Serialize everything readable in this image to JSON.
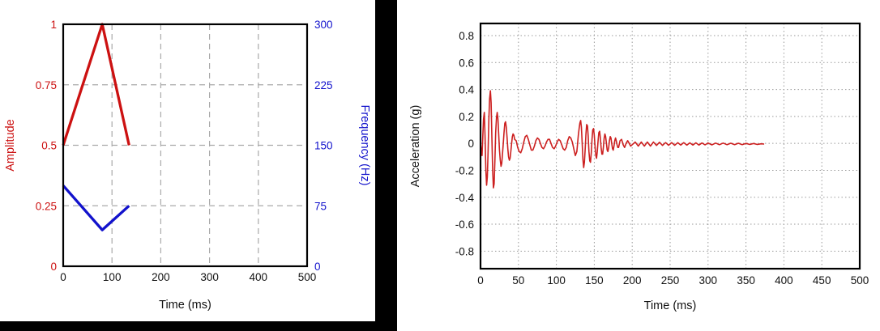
{
  "figure": {
    "background_color": "#000000",
    "panel_color": "#ffffff",
    "text_color": "#111111"
  },
  "chart_data": [
    {
      "id": "amplitude-frequency",
      "type": "line",
      "title": "",
      "xlabel": "Time (ms)",
      "xlim": [
        0,
        500
      ],
      "x_tick_values": [
        0,
        100,
        200,
        300,
        400,
        500
      ],
      "x_tick_labels": [
        "0",
        "100",
        "200",
        "300",
        "400",
        "500"
      ],
      "grid": {
        "style": "dashed",
        "color": "#a9a9a9",
        "on": true
      },
      "legend": "none",
      "left_axis": {
        "label": "Amplitude",
        "color": "#cc1111",
        "lim": [
          0,
          1
        ],
        "tick_values": [
          0,
          0.25,
          0.5,
          0.75,
          1
        ],
        "tick_labels": [
          "0",
          "0.25",
          "0.5",
          "0.75",
          "1"
        ]
      },
      "right_axis": {
        "label": "Frequency (Hz)",
        "color": "#1212cc",
        "lim": [
          0,
          300
        ],
        "tick_values": [
          0,
          75,
          150,
          225,
          300
        ],
        "tick_labels": [
          "0",
          "75",
          "150",
          "225",
          "300"
        ]
      },
      "series": [
        {
          "name": "amplitude",
          "axis": "left",
          "color": "#cc1111",
          "points": [
            [
              0,
              0.5
            ],
            [
              80,
              1.0
            ],
            [
              135,
              0.5
            ]
          ]
        },
        {
          "name": "frequency",
          "axis": "right",
          "color": "#1212cc",
          "points": [
            [
              0,
              100
            ],
            [
              80,
              45
            ],
            [
              135,
              75
            ]
          ]
        }
      ]
    },
    {
      "id": "acceleration",
      "type": "line",
      "title": "",
      "xlabel": "Time (ms)",
      "ylabel": "Acceleration (g)",
      "xlim": [
        0,
        500
      ],
      "ylim": [
        -0.93,
        0.89
      ],
      "x_tick_values": [
        0,
        50,
        100,
        150,
        200,
        250,
        300,
        350,
        400,
        450,
        500
      ],
      "x_tick_labels": [
        "0",
        "50",
        "100",
        "150",
        "200",
        "250",
        "300",
        "350",
        "400",
        "450",
        "500"
      ],
      "y_tick_values": [
        0.8,
        0.6,
        0.4,
        0.2,
        0,
        -0.2,
        -0.4,
        -0.6,
        -0.8
      ],
      "y_tick_labels": [
        "0.8",
        "0.6",
        "0.4",
        "0.2",
        "0",
        "-0.2",
        "-0.4",
        "-0.6",
        "-0.8"
      ],
      "grid": {
        "style": "dotted",
        "color": "#9a9a9a",
        "on": true
      },
      "legend": "none",
      "series": [
        {
          "name": "acceleration",
          "color": "#cc2020",
          "points": [
            [
              0,
              0
            ],
            [
              1,
              -0.05
            ],
            [
              2,
              -0.09
            ],
            [
              3,
              0.05
            ],
            [
              4,
              0.18
            ],
            [
              5,
              0.23
            ],
            [
              6,
              0.05
            ],
            [
              7,
              -0.2
            ],
            [
              8,
              -0.31
            ],
            [
              9,
              -0.25
            ],
            [
              10,
              -0.05
            ],
            [
              11,
              0.18
            ],
            [
              12,
              0.33
            ],
            [
              13,
              0.39
            ],
            [
              14,
              0.3
            ],
            [
              15,
              0.05
            ],
            [
              16,
              -0.2
            ],
            [
              17,
              -0.33
            ],
            [
              18,
              -0.3
            ],
            [
              19,
              -0.12
            ],
            [
              20,
              0.08
            ],
            [
              21,
              0.19
            ],
            [
              22,
              0.23
            ],
            [
              23,
              0.18
            ],
            [
              24,
              0.06
            ],
            [
              25,
              -0.05
            ],
            [
              26,
              -0.12
            ],
            [
              27,
              -0.17
            ],
            [
              28,
              -0.15
            ],
            [
              29,
              -0.08
            ],
            [
              30,
              0.0
            ],
            [
              31,
              0.08
            ],
            [
              32,
              0.15
            ],
            [
              33,
              0.16
            ],
            [
              34,
              0.12
            ],
            [
              35,
              0.04
            ],
            [
              36,
              -0.04
            ],
            [
              37,
              -0.1
            ],
            [
              38,
              -0.125
            ],
            [
              39,
              -0.11
            ],
            [
              40,
              -0.06
            ],
            [
              41,
              0.0
            ],
            [
              42,
              0.05
            ],
            [
              43,
              0.07
            ],
            [
              44,
              0.06
            ],
            [
              45,
              0.03
            ],
            [
              47,
              0.02
            ],
            [
              49,
              -0.03
            ],
            [
              51,
              -0.06
            ],
            [
              53,
              -0.07
            ],
            [
              55,
              -0.04
            ],
            [
              57,
              0.01
            ],
            [
              59,
              0.05
            ],
            [
              61,
              0.06
            ],
            [
              63,
              0.03
            ],
            [
              65,
              -0.01
            ],
            [
              67,
              -0.05
            ],
            [
              69,
              -0.05
            ],
            [
              71,
              -0.02
            ],
            [
              73,
              0.02
            ],
            [
              75,
              0.04
            ],
            [
              77,
              0.03
            ],
            [
              79,
              0.0
            ],
            [
              81,
              -0.03
            ],
            [
              83,
              -0.04
            ],
            [
              85,
              -0.02
            ],
            [
              87,
              0.01
            ],
            [
              89,
              0.03
            ],
            [
              91,
              0.03
            ],
            [
              93,
              0.0
            ],
            [
              95,
              -0.03
            ],
            [
              97,
              -0.04
            ],
            [
              99,
              -0.02
            ],
            [
              101,
              0.01
            ],
            [
              103,
              0.03
            ],
            [
              105,
              0.02
            ],
            [
              107,
              -0.01
            ],
            [
              109,
              -0.04
            ],
            [
              111,
              -0.05
            ],
            [
              113,
              -0.03
            ],
            [
              115,
              0.02
            ],
            [
              117,
              0.05
            ],
            [
              119,
              0.04
            ],
            [
              121,
              0.01
            ],
            [
              123,
              -0.04
            ],
            [
              125,
              -0.09
            ],
            [
              127,
              -0.06
            ],
            [
              128,
              0.0
            ],
            [
              129,
              0.06
            ],
            [
              130,
              0.11
            ],
            [
              131,
              0.15
            ],
            [
              132,
              0.17
            ],
            [
              133,
              0.12
            ],
            [
              134,
              0.01
            ],
            [
              135,
              -0.12
            ],
            [
              136,
              -0.18
            ],
            [
              137,
              -0.14
            ],
            [
              138,
              -0.04
            ],
            [
              139,
              0.07
            ],
            [
              140,
              0.14
            ],
            [
              141,
              0.13
            ],
            [
              142,
              0.05
            ],
            [
              143,
              -0.06
            ],
            [
              144,
              -0.13
            ],
            [
              145,
              -0.14
            ],
            [
              146,
              -0.07
            ],
            [
              147,
              0.03
            ],
            [
              148,
              0.1
            ],
            [
              149,
              0.11
            ],
            [
              150,
              0.06
            ],
            [
              151,
              -0.02
            ],
            [
              152,
              -0.09
            ],
            [
              153,
              -0.11
            ],
            [
              154,
              -0.06
            ],
            [
              155,
              0.02
            ],
            [
              156,
              0.08
            ],
            [
              157,
              0.09
            ],
            [
              158,
              0.04
            ],
            [
              159,
              -0.03
            ],
            [
              160,
              -0.08
            ],
            [
              161,
              -0.08
            ],
            [
              162,
              -0.03
            ],
            [
              163,
              0.04
            ],
            [
              164,
              0.07
            ],
            [
              165,
              0.05
            ],
            [
              166,
              0.0
            ],
            [
              167,
              -0.05
            ],
            [
              168,
              -0.06
            ],
            [
              169,
              -0.03
            ],
            [
              170,
              0.02
            ],
            [
              171,
              0.05
            ],
            [
              172,
              0.04
            ],
            [
              173,
              0.0
            ],
            [
              174,
              -0.04
            ],
            [
              175,
              -0.05
            ],
            [
              176,
              -0.02
            ],
            [
              177,
              0.02
            ],
            [
              178,
              0.04
            ],
            [
              179,
              0.02
            ],
            [
              180,
              -0.01
            ],
            [
              181,
              -0.03
            ],
            [
              182,
              -0.03
            ],
            [
              184,
              0.02
            ],
            [
              186,
              0.03
            ],
            [
              188,
              -0.01
            ],
            [
              190,
              -0.03
            ],
            [
              192,
              0.0
            ],
            [
              194,
              0.02
            ],
            [
              196,
              0.0
            ],
            [
              198,
              -0.02
            ],
            [
              200,
              -0.01
            ],
            [
              204,
              0.01
            ],
            [
              208,
              -0.02
            ],
            [
              212,
              0.01
            ],
            [
              216,
              -0.02
            ],
            [
              220,
              0.01
            ],
            [
              224,
              -0.02
            ],
            [
              228,
              0.01
            ],
            [
              232,
              -0.015
            ],
            [
              236,
              0.008
            ],
            [
              240,
              -0.015
            ],
            [
              244,
              0.006
            ],
            [
              248,
              -0.014
            ],
            [
              252,
              0.006
            ],
            [
              256,
              -0.014
            ],
            [
              260,
              0.005
            ],
            [
              264,
              -0.013
            ],
            [
              268,
              0.005
            ],
            [
              272,
              -0.013
            ],
            [
              276,
              0.004
            ],
            [
              280,
              -0.012
            ],
            [
              284,
              0.004
            ],
            [
              288,
              -0.012
            ],
            [
              292,
              0.003
            ],
            [
              296,
              -0.011
            ],
            [
              300,
              0.003
            ],
            [
              305,
              -0.011
            ],
            [
              310,
              0.002
            ],
            [
              315,
              -0.01
            ],
            [
              320,
              0.002
            ],
            [
              325,
              -0.01
            ],
            [
              330,
              0.001
            ],
            [
              335,
              -0.009
            ],
            [
              340,
              0.001
            ],
            [
              345,
              -0.009
            ],
            [
              350,
              0.0
            ],
            [
              355,
              -0.008
            ],
            [
              360,
              -0.001
            ],
            [
              365,
              -0.008
            ],
            [
              370,
              -0.003
            ],
            [
              374,
              -0.005
            ]
          ]
        }
      ]
    }
  ]
}
